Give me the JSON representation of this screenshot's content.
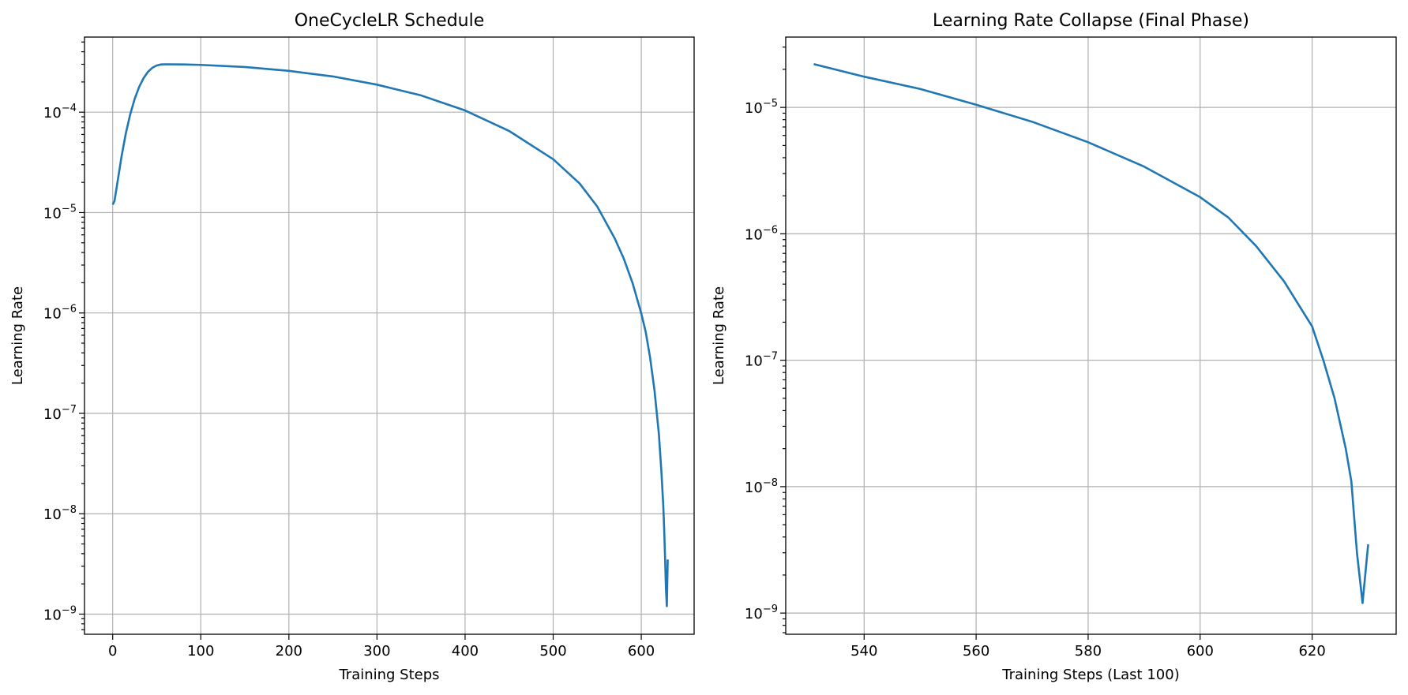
{
  "line_color": "#1f77b4",
  "chart_data": [
    {
      "type": "line",
      "title": "OneCycleLR Schedule",
      "xlabel": "Training Steps",
      "ylabel": "Learning Rate",
      "yscale": "log",
      "grid": true,
      "xlim": [
        -32,
        660
      ],
      "ylim": [
        6.3e-10,
        0.00056
      ],
      "xticks": [
        0,
        100,
        200,
        300,
        400,
        500,
        600
      ],
      "yticks": [
        {
          "value": 1e-09,
          "base": "10",
          "exp": "−9"
        },
        {
          "value": 1e-08,
          "base": "10",
          "exp": "−8"
        },
        {
          "value": 1e-07,
          "base": "10",
          "exp": "−7"
        },
        {
          "value": 1e-06,
          "base": "10",
          "exp": "−6"
        },
        {
          "value": 1e-05,
          "base": "10",
          "exp": "−5"
        },
        {
          "value": 0.0001,
          "base": "10",
          "exp": "−4"
        }
      ],
      "series": [
        {
          "x": [
            0,
            2,
            5,
            10,
            15,
            20,
            25,
            30,
            35,
            40,
            45,
            50,
            55,
            60,
            80,
            100,
            150,
            200,
            250,
            300,
            350,
            400,
            450,
            500,
            530,
            550,
            570,
            580,
            590,
            600,
            605,
            610,
            615,
            620,
            623,
            625,
            626,
            627,
            628,
            629,
            630
          ],
          "y": [
            1.2e-05,
            1.3e-05,
            1.9e-05,
            3.6e-05,
            6.2e-05,
            9.6e-05,
            0.000136,
            0.000178,
            0.000218,
            0.000252,
            0.000277,
            0.000292,
            0.000299,
            0.0003,
            0.000299,
            0.000296,
            0.000282,
            0.000258,
            0.000227,
            0.000188,
            0.000147,
            0.000104,
            6.5e-05,
            3.4e-05,
            1.95e-05,
            1.15e-05,
            5.5e-06,
            3.5e-06,
            2e-06,
            9.9e-07,
            6.5e-07,
            3.6e-07,
            1.7e-07,
            6.2e-08,
            2.5e-08,
            1.2e-08,
            7e-09,
            3.7e-09,
            1.8e-09,
            1.2e-09,
            3.5e-09
          ]
        }
      ]
    },
    {
      "type": "line",
      "title": "Learning Rate Collapse (Final Phase)",
      "xlabel": "Training Steps (Last 100)",
      "ylabel": "Learning Rate",
      "yscale": "log",
      "grid": true,
      "xlim": [
        526,
        635
      ],
      "ylim": [
        6.8e-10,
        3.6e-05
      ],
      "xticks": [
        540,
        560,
        580,
        600,
        620
      ],
      "yticks": [
        {
          "value": 1e-09,
          "base": "10",
          "exp": "−9"
        },
        {
          "value": 1e-08,
          "base": "10",
          "exp": "−8"
        },
        {
          "value": 1e-07,
          "base": "10",
          "exp": "−7"
        },
        {
          "value": 1e-06,
          "base": "10",
          "exp": "−6"
        },
        {
          "value": 1e-05,
          "base": "10",
          "exp": "−5"
        }
      ],
      "series": [
        {
          "x": [
            531,
            540,
            550,
            560,
            570,
            580,
            590,
            600,
            605,
            610,
            615,
            620,
            622,
            624,
            626,
            627,
            628,
            629,
            630
          ],
          "y": [
            2.2e-05,
            1.75e-05,
            1.4e-05,
            1.05e-05,
            7.7e-06,
            5.3e-06,
            3.4e-06,
            1.95e-06,
            1.35e-06,
            8e-07,
            4.2e-07,
            1.85e-07,
            1e-07,
            5e-08,
            2e-08,
            1.1e-08,
            3e-09,
            1.2e-09,
            3.5e-09
          ]
        }
      ]
    }
  ]
}
